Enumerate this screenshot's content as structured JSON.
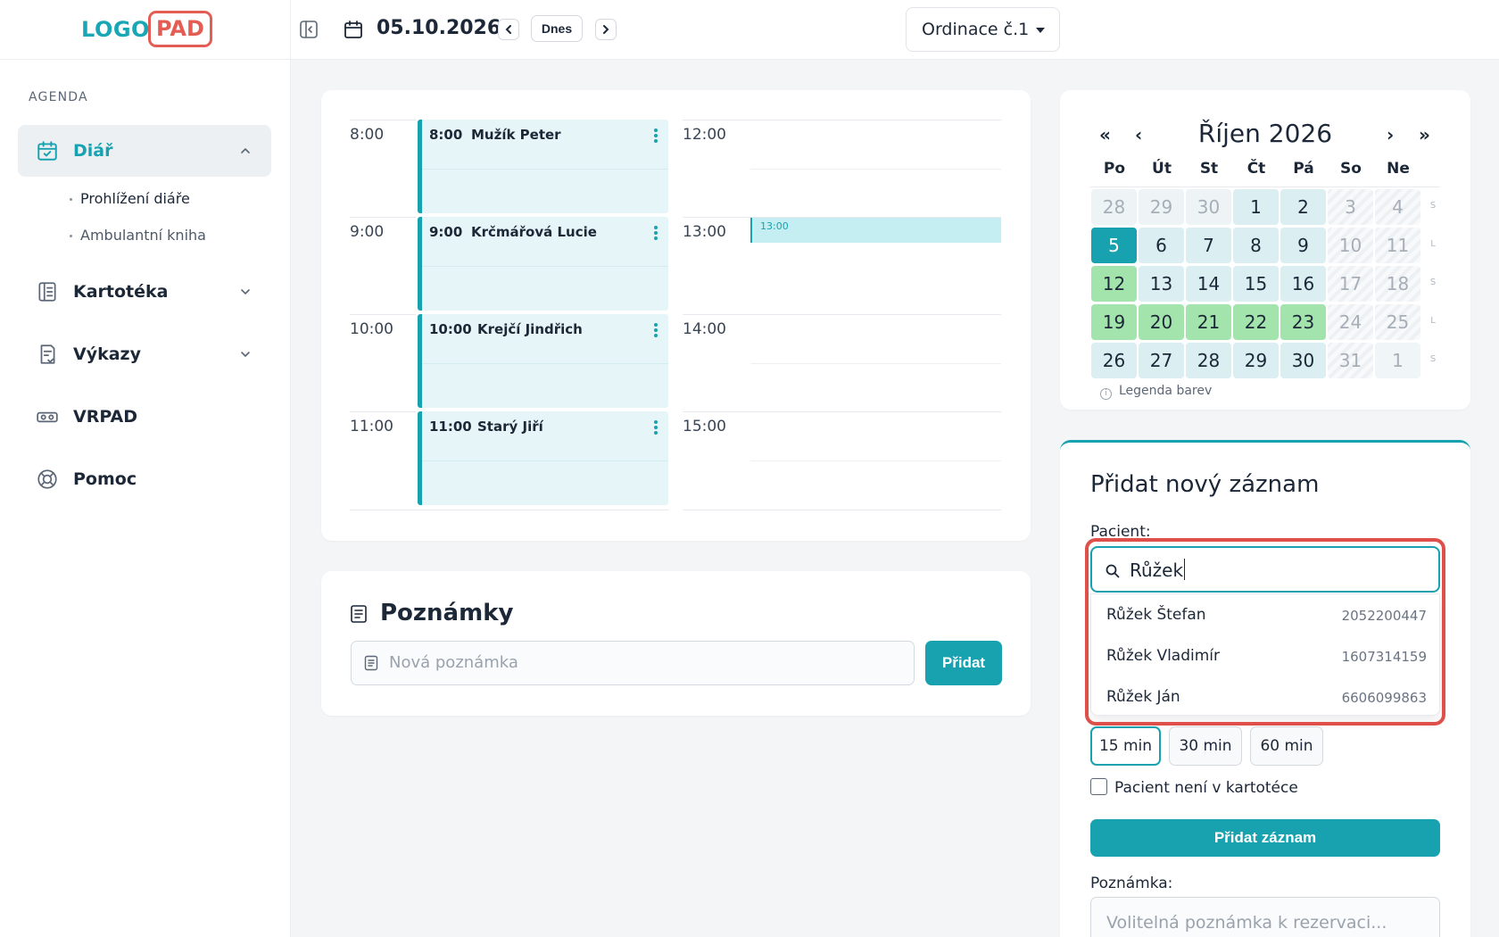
{
  "logo": {
    "left": "LOGO",
    "right": "PAD"
  },
  "sidebar": {
    "section_title": "AGENDA",
    "items": [
      {
        "label": "Diář",
        "icon": "calendar-check-icon"
      },
      {
        "label": "Kartotéka",
        "icon": "book-icon"
      },
      {
        "label": "Výkazy",
        "icon": "report-icon"
      },
      {
        "label": "VRPAD",
        "icon": "vr-icon"
      },
      {
        "label": "Pomoc",
        "icon": "lifebuoy-icon"
      }
    ],
    "subitems": [
      "Prohlížení diáře",
      "Ambulantní kniha"
    ]
  },
  "topbar": {
    "date": "05.10.2026",
    "today_label": "Dnes",
    "clinic": "Ordinace č.1"
  },
  "schedule": {
    "left_times": [
      "8:00",
      "9:00",
      "10:00",
      "11:00"
    ],
    "right_times": [
      "12:00",
      "13:00",
      "14:00",
      "15:00"
    ],
    "appointments": [
      {
        "time": "8:00",
        "name": "Mužík Peter"
      },
      {
        "time": "9:00",
        "name": "Krčmářová Lucie"
      },
      {
        "time": "10:00",
        "name": "Krejčí Jindřich"
      },
      {
        "time": "11:00",
        "name": "Starý Jiří"
      }
    ],
    "slot_label": "13:00"
  },
  "notes": {
    "title": "Poznámky",
    "placeholder": "Nová poznámka",
    "add_label": "Přidat"
  },
  "calendar": {
    "title": "Říjen 2026",
    "weekdays": [
      "Po",
      "Út",
      "St",
      "Čt",
      "Pá",
      "So",
      "Ne"
    ],
    "weeks": [
      [
        {
          "d": "28",
          "s": "other"
        },
        {
          "d": "29",
          "s": "other"
        },
        {
          "d": "30",
          "s": "other"
        },
        {
          "d": "1",
          "s": "cur"
        },
        {
          "d": "2",
          "s": "cur"
        },
        {
          "d": "3",
          "s": "wk"
        },
        {
          "d": "4",
          "s": "wk"
        }
      ],
      [
        {
          "d": "5",
          "s": "sel"
        },
        {
          "d": "6",
          "s": "cur"
        },
        {
          "d": "7",
          "s": "cur"
        },
        {
          "d": "8",
          "s": "cur"
        },
        {
          "d": "9",
          "s": "cur"
        },
        {
          "d": "10",
          "s": "wk"
        },
        {
          "d": "11",
          "s": "wk"
        }
      ],
      [
        {
          "d": "12",
          "s": "green"
        },
        {
          "d": "13",
          "s": "cur"
        },
        {
          "d": "14",
          "s": "cur"
        },
        {
          "d": "15",
          "s": "cur"
        },
        {
          "d": "16",
          "s": "cur"
        },
        {
          "d": "17",
          "s": "wk"
        },
        {
          "d": "18",
          "s": "wk"
        }
      ],
      [
        {
          "d": "19",
          "s": "green"
        },
        {
          "d": "20",
          "s": "green"
        },
        {
          "d": "21",
          "s": "green"
        },
        {
          "d": "22",
          "s": "green"
        },
        {
          "d": "23",
          "s": "green"
        },
        {
          "d": "24",
          "s": "wk"
        },
        {
          "d": "25",
          "s": "wk"
        }
      ],
      [
        {
          "d": "26",
          "s": "cur"
        },
        {
          "d": "27",
          "s": "cur"
        },
        {
          "d": "28",
          "s": "cur"
        },
        {
          "d": "29",
          "s": "cur"
        },
        {
          "d": "30",
          "s": "cur"
        },
        {
          "d": "31",
          "s": "wk"
        },
        {
          "d": "1",
          "s": "wk2"
        }
      ]
    ],
    "week_marks": [
      "S",
      "L",
      "S",
      "L",
      "S"
    ],
    "legend": "Legenda barev"
  },
  "add_record": {
    "title": "Přidat nový záznam",
    "patient_label": "Pacient:",
    "search_value": "Růžek",
    "results": [
      {
        "name": "Růžek Štefan",
        "id": "2052200447"
      },
      {
        "name": "Růžek Vladimír",
        "id": "1607314159"
      },
      {
        "name": "Růžek Ján",
        "id": "6606099863"
      }
    ],
    "durations": [
      "15 min",
      "30 min",
      "60 min"
    ],
    "checkbox_label": "Pacient není v kartotéce",
    "submit_label": "Přidat záznam",
    "note_label": "Poznámka:",
    "note_placeholder": "Volitelná poznámka k rezervaci..."
  },
  "colors": {
    "accent": "#18a2b0",
    "highlight": "#e0504a",
    "green": "#a3e4ad"
  }
}
